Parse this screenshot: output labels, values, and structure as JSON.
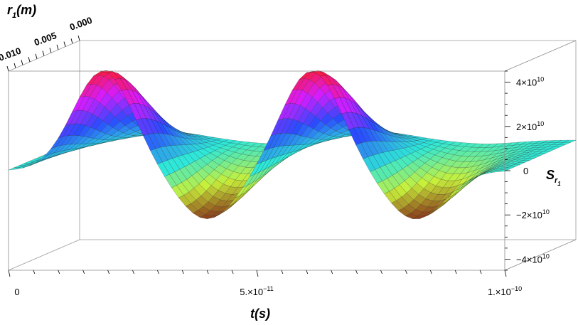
{
  "chart_data": {
    "type": "surface3d",
    "title": "",
    "xlabel": {
      "base": "t",
      "unit": "(s)"
    },
    "ylabel": {
      "base": "r",
      "sub": "1",
      "unit": "(m)"
    },
    "zlabel": {
      "base": "S",
      "sub": "r",
      "subsub": "1"
    },
    "x_range": [
      0,
      1e-10
    ],
    "y_range": [
      0,
      0.01
    ],
    "z_range": [
      -45000000000.0,
      45000000000.0
    ],
    "x_ticks": [
      {
        "value": 0,
        "mantissa": "0",
        "exp": ""
      },
      {
        "value": 5e-11,
        "mantissa": "5.×10",
        "exp": "−11"
      },
      {
        "value": 1e-10,
        "mantissa": "1.×10",
        "exp": "−10"
      }
    ],
    "y_ticks": [
      {
        "value": 0.0,
        "label": "0.000"
      },
      {
        "value": 0.005,
        "label": "0.005"
      },
      {
        "value": 0.01,
        "label": "0.010"
      }
    ],
    "z_ticks": [
      {
        "value": 40000000000.0,
        "mantissa": "4×10",
        "exp": "10"
      },
      {
        "value": 20000000000.0,
        "mantissa": "2×10",
        "exp": "10"
      },
      {
        "value": 0,
        "mantissa": "0",
        "exp": ""
      },
      {
        "value": -20000000000.0,
        "mantissa": "−2×10",
        "exp": "10"
      },
      {
        "value": -40000000000.0,
        "mantissa": "−4×10",
        "exp": "10"
      }
    ],
    "surface": {
      "t_peaks_positive": [
        1.9e-11,
        6.1e-11
      ],
      "t_peaks_negative": [
        4e-11,
        8.2e-11
      ],
      "peak_amplitude": 45000000000.0,
      "trough_amplitude": -22000000000.0,
      "r_peak": 0.0
    },
    "colors": {
      "high": "#ff1a33",
      "mid_high": "#d81bff",
      "mid": "#2a4bff",
      "zero": "#2ee8d8",
      "low": "#c8f03a",
      "trough": "#8a3a1a"
    },
    "grid": false,
    "boxed": true
  }
}
